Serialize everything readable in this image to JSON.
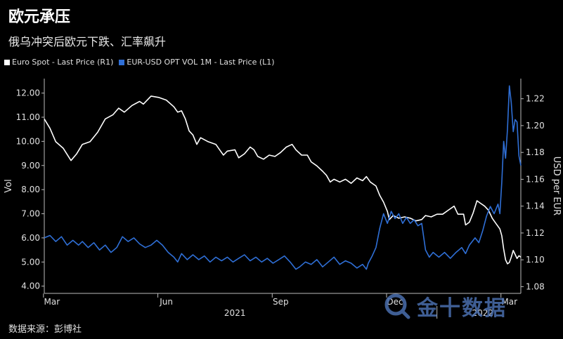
{
  "header": {
    "title": "欧元承压",
    "subtitle": "俄乌冲突后欧元下跌、汇率飙升"
  },
  "legend": [
    {
      "label": "Euro Spot - Last Price (R1)",
      "color": "#ffffff"
    },
    {
      "label": "EUR-USD OPT VOL 1M - Last Price (L1)",
      "color": "#2f6fd6"
    }
  ],
  "source": "数据来源：彭博社",
  "watermark": "金十数据",
  "chart_data": {
    "type": "line",
    "left_axis": {
      "label": "Vol",
      "ticks": [
        "4.00",
        "5.00",
        "6.00",
        "7.00",
        "8.00",
        "9.00",
        "10.00",
        "11.00",
        "12.00"
      ],
      "range": [
        3.7,
        12.6
      ]
    },
    "right_axis": {
      "label": "USD per EUR",
      "ticks": [
        "1.08",
        "1.10",
        "1.12",
        "1.14",
        "1.16",
        "1.18",
        "1.20",
        "1.22"
      ],
      "range": [
        1.075,
        1.235
      ]
    },
    "x_axis": {
      "ticks": [
        "Mar",
        "Jun",
        "Sep",
        "Dec",
        "Mar"
      ],
      "year_labels": [
        "2021",
        "2022"
      ],
      "range": [
        0,
        12.5
      ]
    },
    "series": [
      {
        "name": "Euro Spot - Last Price (R1)",
        "axis": "right",
        "color": "#ffffff",
        "points": [
          [
            0,
            1.205
          ],
          [
            0.15,
            1.198
          ],
          [
            0.3,
            1.188
          ],
          [
            0.5,
            1.183
          ],
          [
            0.7,
            1.174
          ],
          [
            0.85,
            1.179
          ],
          [
            1.0,
            1.186
          ],
          [
            1.2,
            1.188
          ],
          [
            1.4,
            1.195
          ],
          [
            1.6,
            1.205
          ],
          [
            1.8,
            1.208
          ],
          [
            1.95,
            1.213
          ],
          [
            2.1,
            1.21
          ],
          [
            2.3,
            1.215
          ],
          [
            2.5,
            1.218
          ],
          [
            2.6,
            1.216
          ],
          [
            2.8,
            1.222
          ],
          [
            3.0,
            1.221
          ],
          [
            3.2,
            1.219
          ],
          [
            3.4,
            1.214
          ],
          [
            3.5,
            1.21
          ],
          [
            3.6,
            1.211
          ],
          [
            3.7,
            1.205
          ],
          [
            3.8,
            1.196
          ],
          [
            3.9,
            1.193
          ],
          [
            4.0,
            1.186
          ],
          [
            4.1,
            1.191
          ],
          [
            4.3,
            1.188
          ],
          [
            4.5,
            1.186
          ],
          [
            4.6,
            1.182
          ],
          [
            4.7,
            1.178
          ],
          [
            4.8,
            1.181
          ],
          [
            5.0,
            1.182
          ],
          [
            5.1,
            1.176
          ],
          [
            5.25,
            1.179
          ],
          [
            5.4,
            1.184
          ],
          [
            5.5,
            1.182
          ],
          [
            5.6,
            1.177
          ],
          [
            5.75,
            1.175
          ],
          [
            5.9,
            1.178
          ],
          [
            6.05,
            1.177
          ],
          [
            6.2,
            1.18
          ],
          [
            6.35,
            1.184
          ],
          [
            6.5,
            1.186
          ],
          [
            6.6,
            1.182
          ],
          [
            6.75,
            1.178
          ],
          [
            6.9,
            1.178
          ],
          [
            7.0,
            1.173
          ],
          [
            7.15,
            1.17
          ],
          [
            7.3,
            1.166
          ],
          [
            7.4,
            1.163
          ],
          [
            7.5,
            1.158
          ],
          [
            7.6,
            1.16
          ],
          [
            7.75,
            1.158
          ],
          [
            7.9,
            1.16
          ],
          [
            8.05,
            1.157
          ],
          [
            8.2,
            1.161
          ],
          [
            8.35,
            1.159
          ],
          [
            8.45,
            1.162
          ],
          [
            8.55,
            1.158
          ],
          [
            8.7,
            1.155
          ],
          [
            8.8,
            1.148
          ],
          [
            8.9,
            1.143
          ],
          [
            9.0,
            1.136
          ],
          [
            9.05,
            1.13
          ],
          [
            9.15,
            1.133
          ],
          [
            9.3,
            1.131
          ],
          [
            9.45,
            1.132
          ],
          [
            9.6,
            1.131
          ],
          [
            9.75,
            1.129
          ],
          [
            9.9,
            1.13
          ],
          [
            10.0,
            1.133
          ],
          [
            10.15,
            1.132
          ],
          [
            10.3,
            1.134
          ],
          [
            10.45,
            1.134
          ],
          [
            10.6,
            1.137
          ],
          [
            10.75,
            1.14
          ],
          [
            10.85,
            1.134
          ],
          [
            11.0,
            1.134
          ],
          [
            11.05,
            1.126
          ],
          [
            11.15,
            1.128
          ],
          [
            11.25,
            1.135
          ],
          [
            11.35,
            1.144
          ],
          [
            11.45,
            1.142
          ],
          [
            11.55,
            1.14
          ],
          [
            11.65,
            1.137
          ],
          [
            11.75,
            1.131
          ],
          [
            11.85,
            1.127
          ],
          [
            11.95,
            1.123
          ],
          [
            12.0,
            1.118
          ],
          [
            12.05,
            1.108
          ],
          [
            12.1,
            1.1
          ],
          [
            12.15,
            1.097
          ],
          [
            12.2,
            1.098
          ],
          [
            12.25,
            1.102
          ],
          [
            12.3,
            1.107
          ],
          [
            12.35,
            1.104
          ],
          [
            12.4,
            1.101
          ],
          [
            12.45,
            1.103
          ],
          [
            12.5,
            1.102
          ]
        ]
      },
      {
        "name": "EUR-USD OPT VOL 1M - Last Price (L1)",
        "axis": "left",
        "color": "#2f6fd6",
        "points": [
          [
            0,
            6.0
          ],
          [
            0.15,
            6.1
          ],
          [
            0.3,
            5.85
          ],
          [
            0.45,
            6.05
          ],
          [
            0.6,
            5.7
          ],
          [
            0.75,
            5.9
          ],
          [
            0.9,
            5.7
          ],
          [
            1.0,
            5.85
          ],
          [
            1.15,
            5.6
          ],
          [
            1.3,
            5.8
          ],
          [
            1.45,
            5.5
          ],
          [
            1.6,
            5.7
          ],
          [
            1.75,
            5.4
          ],
          [
            1.9,
            5.6
          ],
          [
            2.05,
            6.05
          ],
          [
            2.2,
            5.85
          ],
          [
            2.35,
            6.0
          ],
          [
            2.5,
            5.75
          ],
          [
            2.65,
            5.6
          ],
          [
            2.8,
            5.7
          ],
          [
            2.95,
            5.9
          ],
          [
            3.1,
            5.7
          ],
          [
            3.25,
            5.4
          ],
          [
            3.4,
            5.2
          ],
          [
            3.5,
            5.0
          ],
          [
            3.6,
            5.35
          ],
          [
            3.75,
            5.1
          ],
          [
            3.9,
            5.3
          ],
          [
            4.05,
            5.1
          ],
          [
            4.2,
            5.25
          ],
          [
            4.35,
            5.0
          ],
          [
            4.5,
            5.2
          ],
          [
            4.65,
            5.05
          ],
          [
            4.8,
            5.2
          ],
          [
            4.95,
            5.0
          ],
          [
            5.1,
            5.15
          ],
          [
            5.25,
            5.3
          ],
          [
            5.4,
            5.05
          ],
          [
            5.55,
            5.2
          ],
          [
            5.7,
            5.0
          ],
          [
            5.85,
            5.15
          ],
          [
            6.0,
            4.95
          ],
          [
            6.15,
            5.1
          ],
          [
            6.3,
            5.25
          ],
          [
            6.45,
            5.0
          ],
          [
            6.6,
            4.7
          ],
          [
            6.7,
            4.8
          ],
          [
            6.85,
            5.0
          ],
          [
            7.0,
            4.9
          ],
          [
            7.15,
            5.1
          ],
          [
            7.3,
            4.8
          ],
          [
            7.45,
            5.0
          ],
          [
            7.6,
            5.2
          ],
          [
            7.75,
            4.9
          ],
          [
            7.9,
            5.05
          ],
          [
            8.05,
            4.95
          ],
          [
            8.2,
            4.75
          ],
          [
            8.35,
            4.9
          ],
          [
            8.45,
            4.7
          ],
          [
            8.5,
            4.95
          ],
          [
            8.6,
            5.25
          ],
          [
            8.7,
            5.6
          ],
          [
            8.8,
            6.4
          ],
          [
            8.9,
            7.0
          ],
          [
            9.0,
            6.6
          ],
          [
            9.1,
            7.1
          ],
          [
            9.2,
            6.8
          ],
          [
            9.3,
            7.0
          ],
          [
            9.4,
            6.6
          ],
          [
            9.5,
            6.85
          ],
          [
            9.6,
            6.6
          ],
          [
            9.7,
            6.75
          ],
          [
            9.8,
            6.5
          ],
          [
            9.9,
            6.6
          ],
          [
            10.0,
            5.5
          ],
          [
            10.1,
            5.2
          ],
          [
            10.2,
            5.4
          ],
          [
            10.35,
            5.2
          ],
          [
            10.5,
            5.4
          ],
          [
            10.65,
            5.15
          ],
          [
            10.8,
            5.4
          ],
          [
            10.95,
            5.6
          ],
          [
            11.05,
            5.35
          ],
          [
            11.15,
            5.7
          ],
          [
            11.3,
            6.0
          ],
          [
            11.4,
            5.8
          ],
          [
            11.5,
            6.3
          ],
          [
            11.6,
            6.9
          ],
          [
            11.7,
            7.3
          ],
          [
            11.8,
            7.0
          ],
          [
            11.9,
            7.4
          ],
          [
            11.95,
            7.0
          ],
          [
            12.0,
            8.3
          ],
          [
            12.05,
            10.0
          ],
          [
            12.1,
            9.3
          ],
          [
            12.15,
            10.5
          ],
          [
            12.2,
            12.3
          ],
          [
            12.25,
            11.6
          ],
          [
            12.3,
            10.4
          ],
          [
            12.35,
            10.9
          ],
          [
            12.4,
            10.8
          ],
          [
            12.45,
            9.4
          ],
          [
            12.5,
            9.0
          ]
        ]
      }
    ],
    "grid": false,
    "legend_position": "top-left"
  }
}
